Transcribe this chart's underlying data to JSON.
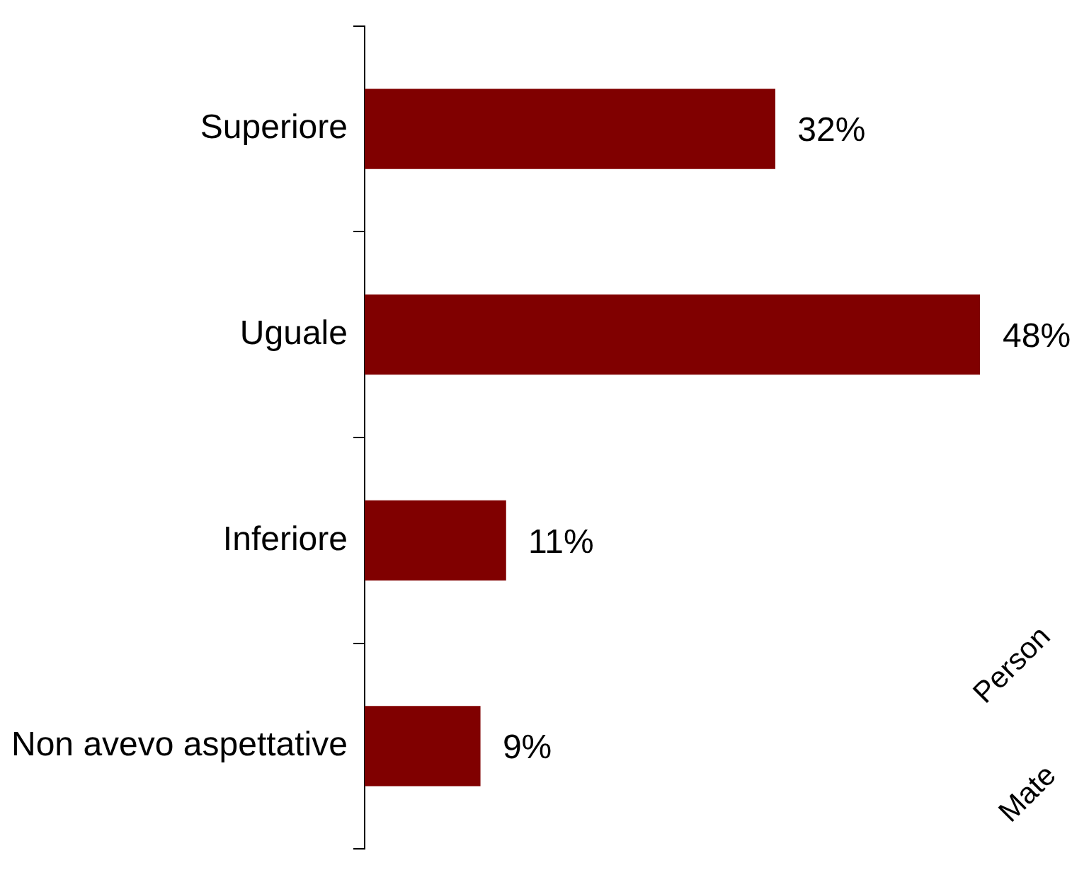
{
  "chart_data": {
    "type": "bar",
    "orientation": "horizontal",
    "categories": [
      "Superiore",
      "Uguale",
      "Inferiore",
      "Non avevo aspettative"
    ],
    "values": [
      32,
      48,
      11,
      9
    ],
    "value_labels": [
      "32%",
      "48%",
      "11%",
      "9%"
    ],
    "color": "#800000",
    "annotations": [
      "Person",
      "Mate"
    ]
  }
}
